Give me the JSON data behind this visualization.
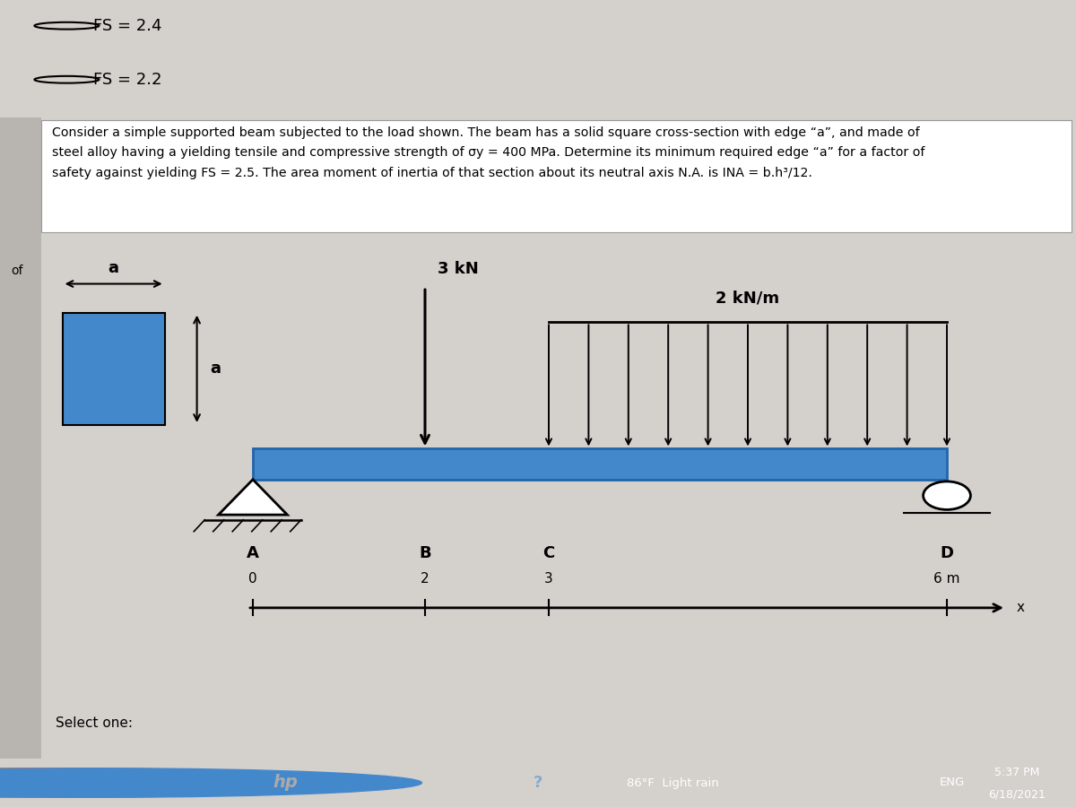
{
  "bg_color_light_gray": "#d4d0cc",
  "bg_color_main": "#d8d4d0",
  "bg_color_white": "#ffffff",
  "bg_color_taskbar": "#2b2b2b",
  "bg_color_left_strip": "#b8b4b0",
  "option1_text": "FS = 2.4",
  "option2_text": "FS = 2.2",
  "problem_text_line1": "Consider a simple supported beam subjected to the load shown. The beam has a solid square cross-section with edge “a”, and made of",
  "problem_text_line2": "steel alloy having a yielding tensile and compressive strength of σy = 400 MPa. Determine its minimum required edge “a” for a factor of",
  "problem_text_line3": "safety against yielding FS = 2.5. The area moment of inertia of that section about its neutral axis N.A. is INA = b.h³/12.",
  "label_of": "of",
  "beam_color": "#4488cc",
  "beam_color_dark": "#2266aa",
  "point_load_label": "3 kN",
  "dist_load_label": "2 kN/m",
  "square_color": "#4488cc",
  "square_label_a_top": "a",
  "square_label_a_side": "a",
  "label_A": "A",
  "label_B": "B",
  "label_C": "C",
  "label_D": "D",
  "num_A": "0",
  "num_B": "2",
  "num_C": "3",
  "num_D": "6 m",
  "axis_label": "x",
  "select_one_text": "Select one:",
  "taskbar_weather": "86°F  Light rain",
  "taskbar_eng": "ENG",
  "taskbar_time": "5:37 PM",
  "taskbar_date": "6/18/2021"
}
